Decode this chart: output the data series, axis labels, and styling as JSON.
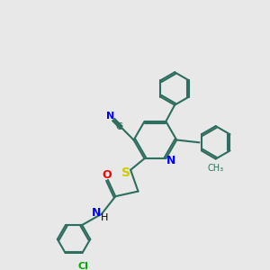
{
  "bg_color": "#e8e8e8",
  "bond_color": "#2d6e5e",
  "atom_colors": {
    "N": "#0000ff",
    "O": "#ff0000",
    "S": "#cccc00",
    "Cl": "#00aa00",
    "C": "#2d6e5e",
    "H": "#000000"
  },
  "lw": 1.5,
  "figsize": [
    3.0,
    3.0
  ],
  "dpi": 100
}
